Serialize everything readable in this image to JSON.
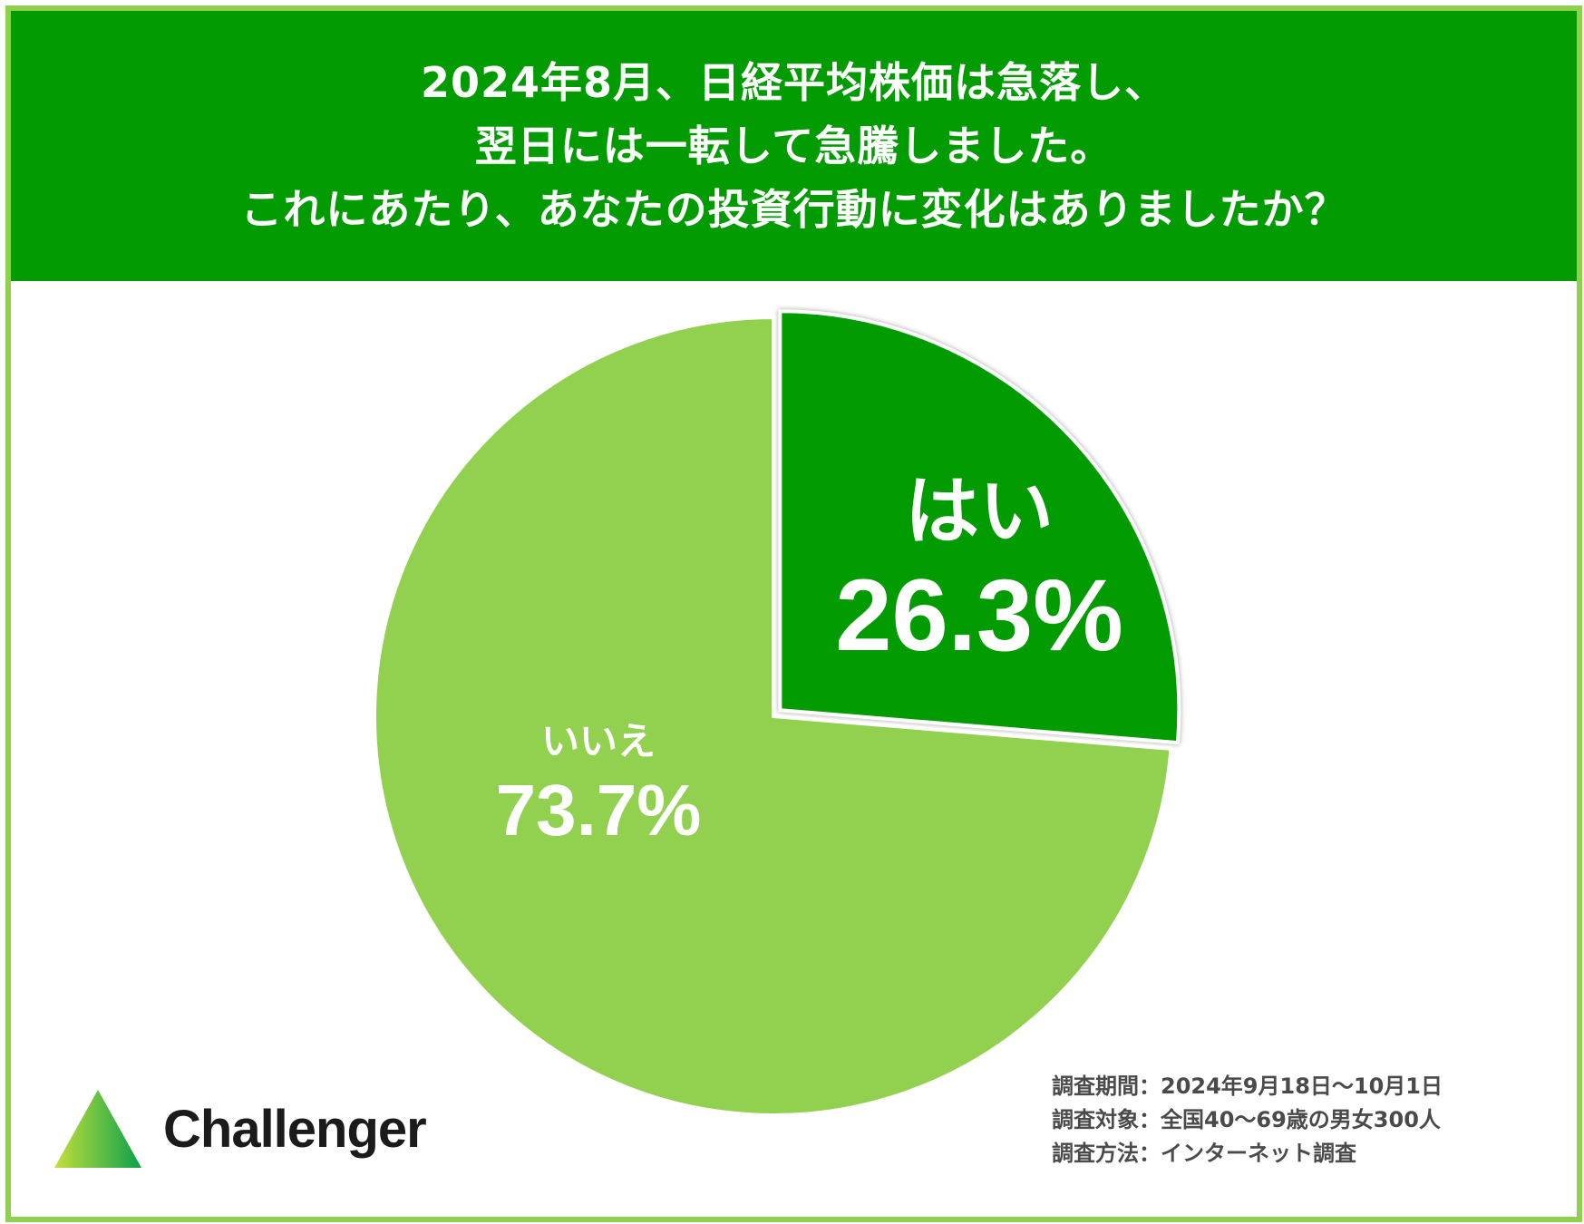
{
  "header": {
    "lines": [
      "2024年8月、日経平均株価は急落し、",
      "翌日には一転して急騰しました。",
      "これにあたり、あなたの投資行動に変化はありましたか？"
    ]
  },
  "chart_data": {
    "type": "pie",
    "slices": [
      {
        "label": "はい",
        "value": 26.3,
        "display": "26.3%",
        "color": "#029c02"
      },
      {
        "label": "いいえ",
        "value": 73.7,
        "display": "73.7%",
        "color": "#92d050"
      }
    ]
  },
  "survey": {
    "rows": [
      {
        "key": "調査期間",
        "value": "2024年9月18日～10月1日"
      },
      {
        "key": "調査対象",
        "value": "全国40～69歳の男女300人"
      },
      {
        "key": "調査方法",
        "value": "インターネット調査"
      }
    ]
  },
  "logo": {
    "brand": "Challenger",
    "gradient": [
      "#c4e03c",
      "#0aa14a"
    ]
  },
  "colors": {
    "border": "#8fd14f",
    "header_bg": "#029c02"
  }
}
